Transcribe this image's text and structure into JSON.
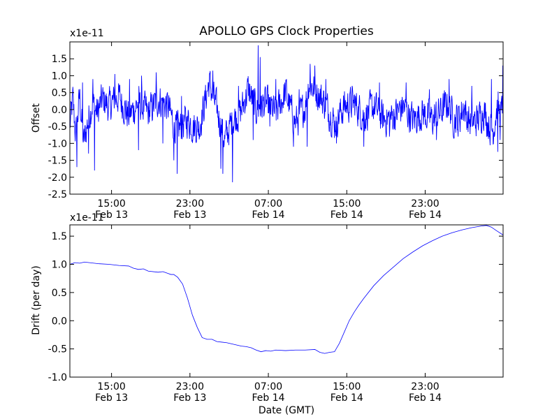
{
  "title": "APOLLO GPS Clock Properties",
  "chart_data": [
    {
      "type": "line",
      "title": "APOLLO GPS Clock Properties",
      "xlabel": "",
      "ylabel": "Offset",
      "y_multiplier_label": "x1e-11",
      "x_unit": "hours",
      "x_start": "Feb 13 10:45 GMT",
      "xlim": [
        0,
        44.2
      ],
      "ylim": [
        -2.5,
        2.0
      ],
      "y_ticks": [
        -2.5,
        -2.0,
        -1.5,
        -1.0,
        -0.5,
        0.0,
        0.5,
        1.0,
        1.5
      ],
      "y_tick_labels": [
        "-2.5",
        "-2.0",
        "-1.5",
        "-1.0",
        "-0.5",
        "0.0",
        "0.5",
        "1.0",
        "1.5"
      ],
      "x_ticks": [
        {
          "x": 4.25,
          "time": "15:00",
          "date": "Feb 13"
        },
        {
          "x": 12.25,
          "time": "23:00",
          "date": "Feb 13"
        },
        {
          "x": 20.25,
          "time": "07:00",
          "date": "Feb 14"
        },
        {
          "x": 28.25,
          "time": "15:00",
          "date": "Feb 14"
        },
        {
          "x": 36.25,
          "time": "23:00",
          "date": "Feb 14"
        }
      ],
      "grid": false,
      "series": [
        {
          "color": "#0000ff",
          "noise_amplitude": 0.45,
          "x": [
            0.0,
            0.3,
            0.6,
            1.0,
            1.4,
            1.8,
            2.3,
            2.8,
            3.3,
            4.0,
            5.0,
            6.0,
            7.0,
            8.0,
            9.0,
            10.0,
            10.6,
            11.0,
            11.6,
            12.0,
            12.6,
            13.2,
            13.6,
            14.2,
            15.0,
            15.8,
            16.6,
            17.4,
            18.2,
            19.0,
            20.0,
            21.0,
            22.0,
            23.0,
            24.0,
            24.4,
            25.0,
            26.0,
            27.0,
            28.0,
            29.0,
            30.0,
            31.0,
            32.0,
            33.0,
            34.0,
            35.0,
            36.0,
            37.0,
            38.0,
            38.6,
            39.2,
            39.8,
            40.2,
            40.6,
            41.0,
            41.6,
            42.2,
            42.8,
            43.2,
            43.6,
            44.0,
            44.2
          ],
          "y": [
            -0.5,
            0.3,
            -0.8,
            0.4,
            -1.0,
            -0.4,
            0.2,
            -0.1,
            0.3,
            0.1,
            0.4,
            -0.2,
            0.2,
            -0.1,
            0.3,
            0.1,
            -0.4,
            -0.6,
            -0.4,
            -0.3,
            -0.5,
            -0.5,
            0.0,
            0.8,
            0.0,
            -0.9,
            -0.3,
            -0.1,
            0.6,
            0.0,
            0.2,
            -0.1,
            0.5,
            -0.4,
            0.1,
            0.8,
            0.6,
            0.2,
            -0.4,
            0.1,
            0.2,
            -0.2,
            0.1,
            -0.3,
            -0.2,
            0.1,
            -0.3,
            -0.1,
            -0.3,
            0.0,
            0.2,
            -0.3,
            -0.2,
            0.1,
            -0.3,
            -0.4,
            -0.3,
            0.0,
            -0.5,
            -0.6,
            0.1,
            -0.2,
            0.3
          ],
          "spikes": [
            {
              "x": 0.7,
              "y": -1.7
            },
            {
              "x": 1.3,
              "y": 0.8
            },
            {
              "x": 1.9,
              "y": -1.3
            },
            {
              "x": 2.35,
              "y": 0.9
            },
            {
              "x": 2.5,
              "y": -1.8
            },
            {
              "x": 4.6,
              "y": 1.05
            },
            {
              "x": 6.1,
              "y": 0.9
            },
            {
              "x": 7.3,
              "y": 1.0
            },
            {
              "x": 7.0,
              "y": -1.2
            },
            {
              "x": 8.8,
              "y": 1.1
            },
            {
              "x": 9.5,
              "y": -1.0
            },
            {
              "x": 10.6,
              "y": -1.5
            },
            {
              "x": 10.95,
              "y": -1.9
            },
            {
              "x": 11.4,
              "y": 0.4
            },
            {
              "x": 13.3,
              "y": -0.8
            },
            {
              "x": 14.6,
              "y": 1.15
            },
            {
              "x": 15.4,
              "y": -1.75
            },
            {
              "x": 15.6,
              "y": -1.9
            },
            {
              "x": 16.6,
              "y": -2.15
            },
            {
              "x": 17.2,
              "y": 0.7
            },
            {
              "x": 18.7,
              "y": -0.9
            },
            {
              "x": 19.2,
              "y": 1.9
            },
            {
              "x": 19.4,
              "y": 1.55
            },
            {
              "x": 20.4,
              "y": -0.5
            },
            {
              "x": 21.0,
              "y": 0.9
            },
            {
              "x": 22.1,
              "y": 0.9
            },
            {
              "x": 22.8,
              "y": -1.1
            },
            {
              "x": 23.4,
              "y": 0.6
            },
            {
              "x": 24.5,
              "y": 1.35
            },
            {
              "x": 25.0,
              "y": 1.3
            },
            {
              "x": 24.2,
              "y": -1.1
            },
            {
              "x": 26.1,
              "y": 0.9
            },
            {
              "x": 27.2,
              "y": -1.0
            },
            {
              "x": 28.8,
              "y": 0.7
            },
            {
              "x": 30.0,
              "y": -1.1
            },
            {
              "x": 31.6,
              "y": 0.8
            },
            {
              "x": 32.6,
              "y": -0.8
            },
            {
              "x": 34.3,
              "y": 0.8
            },
            {
              "x": 35.4,
              "y": -0.7
            },
            {
              "x": 36.7,
              "y": 0.6
            },
            {
              "x": 37.4,
              "y": -0.9
            },
            {
              "x": 38.7,
              "y": 0.9
            },
            {
              "x": 39.6,
              "y": -0.8
            },
            {
              "x": 41.0,
              "y": 0.7
            },
            {
              "x": 42.0,
              "y": -0.7
            },
            {
              "x": 43.0,
              "y": 0.9
            },
            {
              "x": 43.65,
              "y": -1.25
            },
            {
              "x": 43.9,
              "y": -0.9
            },
            {
              "x": 44.15,
              "y": 1.3
            }
          ]
        }
      ]
    },
    {
      "type": "line",
      "title": "",
      "xlabel": "Date (GMT)",
      "ylabel": "Drift (per day)",
      "y_multiplier_label": "x1e-11",
      "x_unit": "hours",
      "x_start": "Feb 13 10:45 GMT",
      "xlim": [
        0,
        44.2
      ],
      "ylim": [
        -1.0,
        1.7
      ],
      "y_ticks": [
        -1.0,
        -0.5,
        0.0,
        0.5,
        1.0,
        1.5
      ],
      "y_tick_labels": [
        "-1.0",
        "-0.5",
        "0.0",
        "0.5",
        "1.0",
        "1.5"
      ],
      "x_ticks": [
        {
          "x": 4.25,
          "time": "15:00",
          "date": "Feb 13"
        },
        {
          "x": 12.25,
          "time": "23:00",
          "date": "Feb 13"
        },
        {
          "x": 20.25,
          "time": "07:00",
          "date": "Feb 14"
        },
        {
          "x": 28.25,
          "time": "15:00",
          "date": "Feb 14"
        },
        {
          "x": 36.25,
          "time": "23:00",
          "date": "Feb 14"
        }
      ],
      "grid": false,
      "series": [
        {
          "color": "#0000ff",
          "x": [
            0.0,
            0.5,
            1.0,
            1.5,
            2.0,
            3.0,
            4.0,
            5.0,
            6.0,
            6.5,
            7.0,
            7.5,
            8.0,
            9.0,
            9.5,
            10.0,
            10.3,
            10.6,
            11.0,
            11.5,
            12.0,
            12.5,
            13.0,
            13.5,
            14.0,
            14.5,
            15.0,
            15.5,
            16.0,
            17.0,
            17.5,
            18.0,
            18.5,
            19.0,
            19.5,
            20.0,
            20.5,
            21.0,
            22.0,
            23.0,
            24.0,
            25.0,
            25.5,
            26.0,
            26.5,
            27.0,
            27.5,
            28.0,
            28.5,
            29.0,
            29.5,
            30.0,
            31.0,
            32.0,
            33.0,
            34.0,
            35.0,
            36.0,
            37.0,
            38.0,
            39.0,
            40.0,
            41.0,
            42.0,
            42.5,
            43.0,
            43.5,
            44.2
          ],
          "y": [
            1.0,
            1.03,
            1.02,
            1.04,
            1.03,
            1.01,
            1.0,
            0.98,
            0.97,
            0.93,
            0.91,
            0.92,
            0.88,
            0.86,
            0.87,
            0.84,
            0.82,
            0.82,
            0.77,
            0.65,
            0.4,
            0.1,
            -0.12,
            -0.3,
            -0.33,
            -0.33,
            -0.37,
            -0.38,
            -0.39,
            -0.43,
            -0.45,
            -0.46,
            -0.48,
            -0.52,
            -0.55,
            -0.53,
            -0.54,
            -0.52,
            -0.53,
            -0.52,
            -0.52,
            -0.51,
            -0.56,
            -0.58,
            -0.56,
            -0.55,
            -0.4,
            -0.2,
            0.0,
            0.15,
            0.28,
            0.4,
            0.62,
            0.8,
            0.95,
            1.1,
            1.22,
            1.33,
            1.42,
            1.5,
            1.56,
            1.61,
            1.65,
            1.68,
            1.69,
            1.66,
            1.6,
            1.52
          ]
        }
      ]
    }
  ]
}
